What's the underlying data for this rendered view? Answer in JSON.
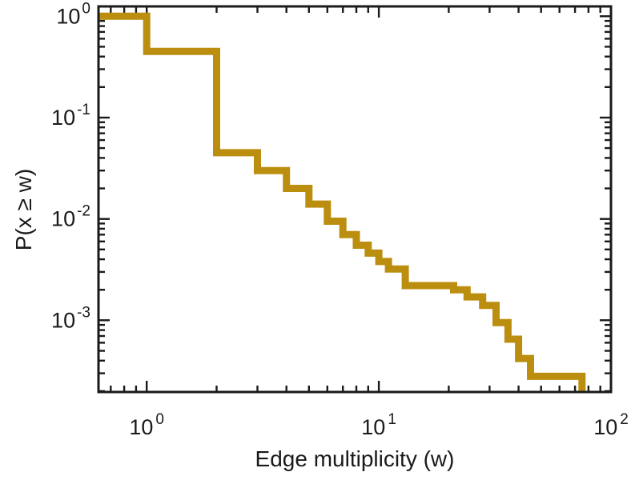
{
  "chart_data": {
    "type": "line",
    "subtype": "step-ccdf",
    "title": "",
    "xlabel": "Edge multiplicity (w)",
    "ylabel": "P(x ≥ w)",
    "log_x": true,
    "log_y": true,
    "xlim": [
      0.62,
      100
    ],
    "ylim": [
      0.000196,
      1.25
    ],
    "grid": false,
    "legend": "none",
    "frame_color": "#1a1a1a",
    "line_color": "#bc8e10",
    "line_width": 9,
    "tick_base": "10",
    "x_ticks": [
      {
        "v": 1,
        "exp": "0"
      },
      {
        "v": 10,
        "exp": "1"
      },
      {
        "v": 100,
        "exp": "2"
      }
    ],
    "y_ticks": [
      {
        "v": 1,
        "exp": "0"
      },
      {
        "v": 0.1,
        "exp": "-1"
      },
      {
        "v": 0.01,
        "exp": "-2"
      },
      {
        "v": 0.001,
        "exp": "-3"
      }
    ],
    "start": [
      0.62,
      1.0
    ],
    "steps": [
      [
        1,
        0.45
      ],
      [
        2,
        0.045
      ],
      [
        3,
        0.03
      ],
      [
        4,
        0.02
      ],
      [
        5,
        0.014
      ],
      [
        6,
        0.0095
      ],
      [
        7,
        0.007
      ],
      [
        8,
        0.0055
      ],
      [
        9,
        0.0046
      ],
      [
        10,
        0.0038
      ],
      [
        11,
        0.0032
      ],
      [
        13,
        0.0022
      ],
      [
        21,
        0.002
      ],
      [
        24,
        0.0017
      ],
      [
        28,
        0.0014
      ],
      [
        32,
        0.00095
      ],
      [
        36,
        0.00065
      ],
      [
        40,
        0.00042
      ],
      [
        45,
        0.00028
      ],
      [
        75,
        0.0002
      ]
    ]
  }
}
